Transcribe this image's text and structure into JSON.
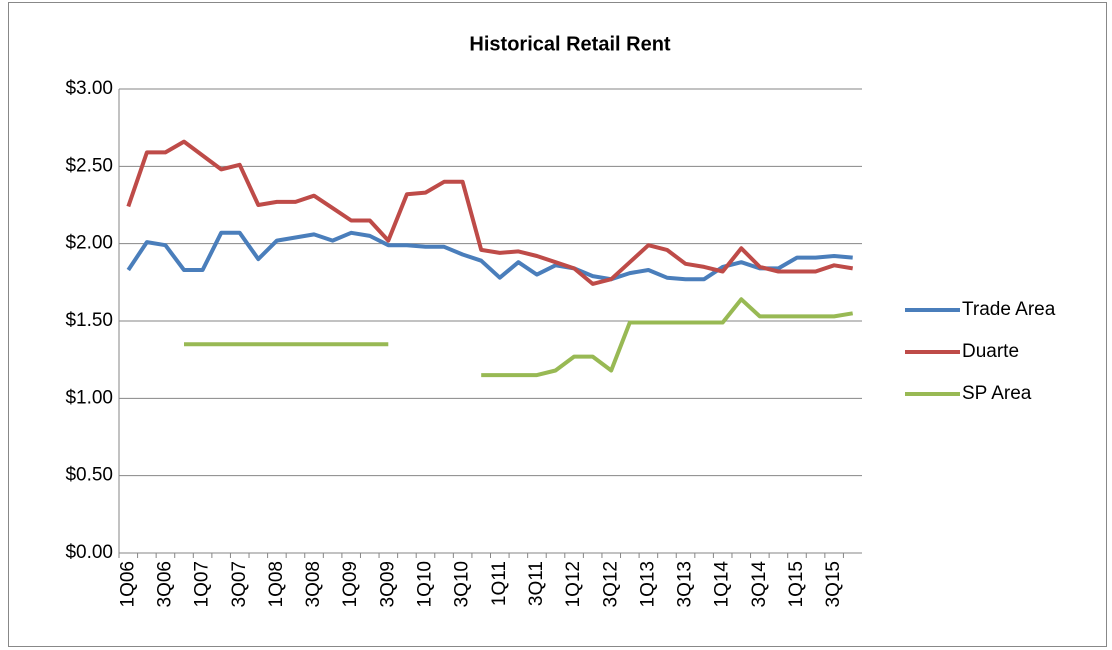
{
  "chart_data": {
    "type": "line",
    "title": "Historical Retail Rent",
    "categories": [
      "1Q06",
      null,
      "3Q06",
      null,
      "1Q07",
      null,
      "3Q07",
      null,
      "1Q08",
      null,
      "3Q08",
      null,
      "1Q09",
      null,
      "3Q09",
      null,
      "1Q10",
      null,
      "3Q10",
      null,
      "1Q11",
      null,
      "3Q11",
      null,
      "1Q12",
      null,
      "3Q12",
      null,
      "1Q13",
      null,
      "3Q13",
      null,
      "1Q14",
      null,
      "3Q14",
      null,
      "1Q15",
      null,
      "3Q15",
      null
    ],
    "series": [
      {
        "name": "Trade Area",
        "color": "#4a7ebb",
        "values": [
          1.83,
          2.01,
          1.99,
          1.83,
          1.83,
          2.07,
          2.07,
          1.9,
          2.02,
          2.04,
          2.06,
          2.02,
          2.07,
          2.05,
          1.99,
          1.99,
          1.98,
          1.98,
          1.93,
          1.89,
          1.78,
          1.88,
          1.8,
          1.86,
          1.84,
          1.79,
          1.77,
          1.81,
          1.83,
          1.78,
          1.77,
          1.77,
          1.85,
          1.88,
          1.84,
          1.84,
          1.91,
          1.91,
          1.92,
          1.91
        ]
      },
      {
        "name": "Duarte",
        "color": "#be4b48",
        "values": [
          2.24,
          2.59,
          2.59,
          2.66,
          2.57,
          2.48,
          2.51,
          2.25,
          2.27,
          2.27,
          2.31,
          2.23,
          2.15,
          2.15,
          2.02,
          2.32,
          2.33,
          2.4,
          2.4,
          1.96,
          1.94,
          1.95,
          1.92,
          1.88,
          1.84,
          1.74,
          1.77,
          1.88,
          1.99,
          1.96,
          1.87,
          1.85,
          1.82,
          1.97,
          1.85,
          1.82,
          1.82,
          1.82,
          1.86,
          1.84
        ]
      },
      {
        "name": "SP Area",
        "color": "#98b954",
        "values": [
          null,
          null,
          null,
          1.35,
          1.35,
          1.35,
          1.35,
          1.35,
          1.35,
          1.35,
          1.35,
          1.35,
          1.35,
          1.35,
          1.35,
          null,
          null,
          null,
          null,
          1.15,
          1.15,
          1.15,
          1.15,
          1.18,
          1.27,
          1.27,
          1.18,
          1.49,
          1.49,
          1.49,
          1.49,
          1.49,
          1.49,
          1.64,
          1.53,
          1.53,
          1.53,
          1.53,
          1.53,
          1.55
        ]
      }
    ],
    "ylim": [
      0,
      3
    ],
    "yticks": [
      {
        "value": 0,
        "label": "$0.00"
      },
      {
        "value": 0.5,
        "label": "$0.50"
      },
      {
        "value": 1,
        "label": "$1.00"
      },
      {
        "value": 1.5,
        "label": "$1.50"
      },
      {
        "value": 2,
        "label": "$2.00"
      },
      {
        "value": 2.5,
        "label": "$2.50"
      },
      {
        "value": 3,
        "label": "$3.00"
      }
    ],
    "grid": true,
    "legend": "right"
  }
}
